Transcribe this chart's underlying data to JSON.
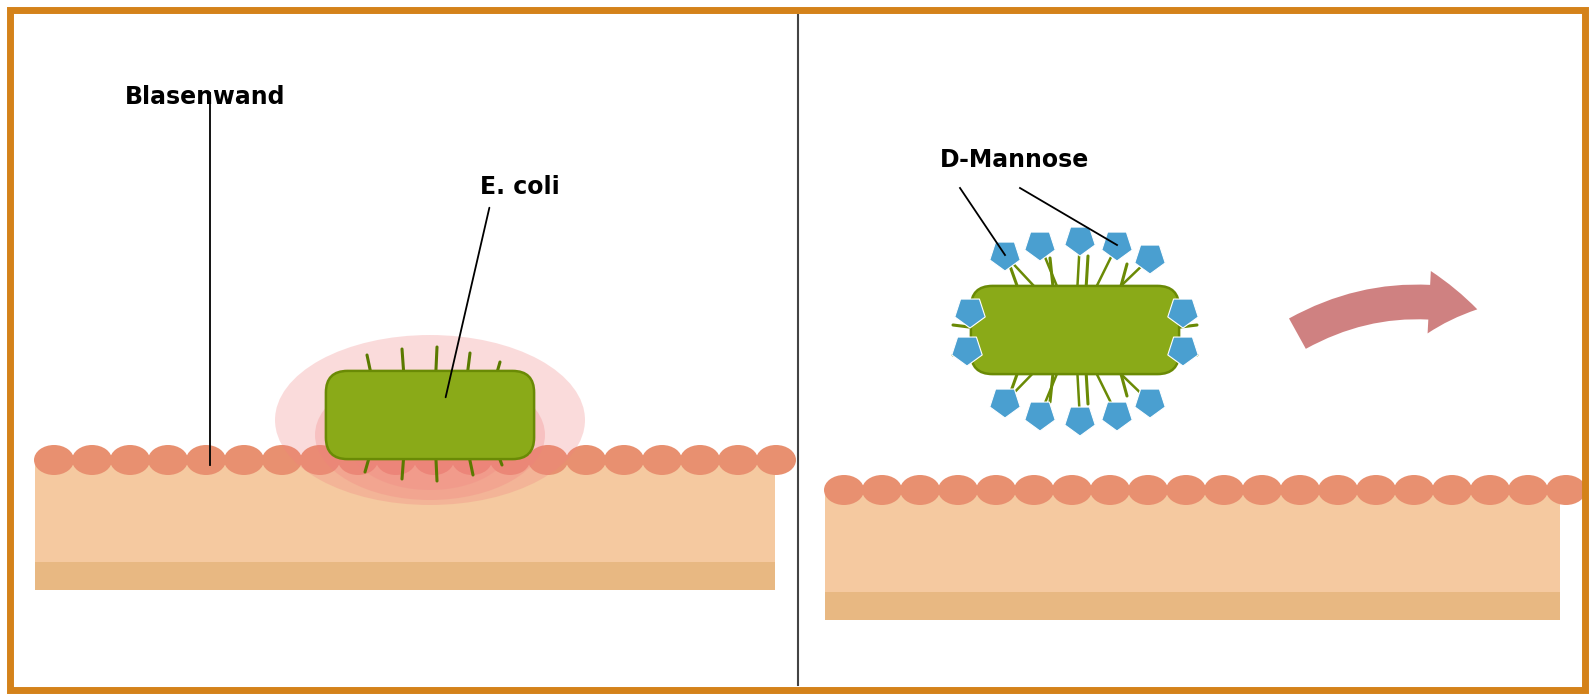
{
  "background_color": "#ffffff",
  "border_color": "#D4821A",
  "border_width": 6,
  "panel1": {
    "label_blasenwand": "Blasenwand",
    "label_ecoli": "E. coli",
    "wall_top_color": "#F0A878",
    "wall_mid_color": "#F5C9A0",
    "wall_bot_color": "#E8B882",
    "cell_color": "#E89070",
    "glow_color": "#F08080",
    "bacteria_color": "#8AAA18",
    "bacteria_edge": "#6A8A05",
    "fili_color": "#5A7A00"
  },
  "panel2": {
    "label_dmannose": "D-Mannose",
    "wall_top_color": "#F0A878",
    "wall_mid_color": "#F5C9A0",
    "wall_bot_color": "#E8B882",
    "cell_color": "#E89070",
    "bacteria_color": "#8AAA18",
    "bacteria_edge": "#6A8A05",
    "mannose_color": "#4A9FD0",
    "arrow_color": "#C97070",
    "fili_color": "#6A8A05"
  }
}
